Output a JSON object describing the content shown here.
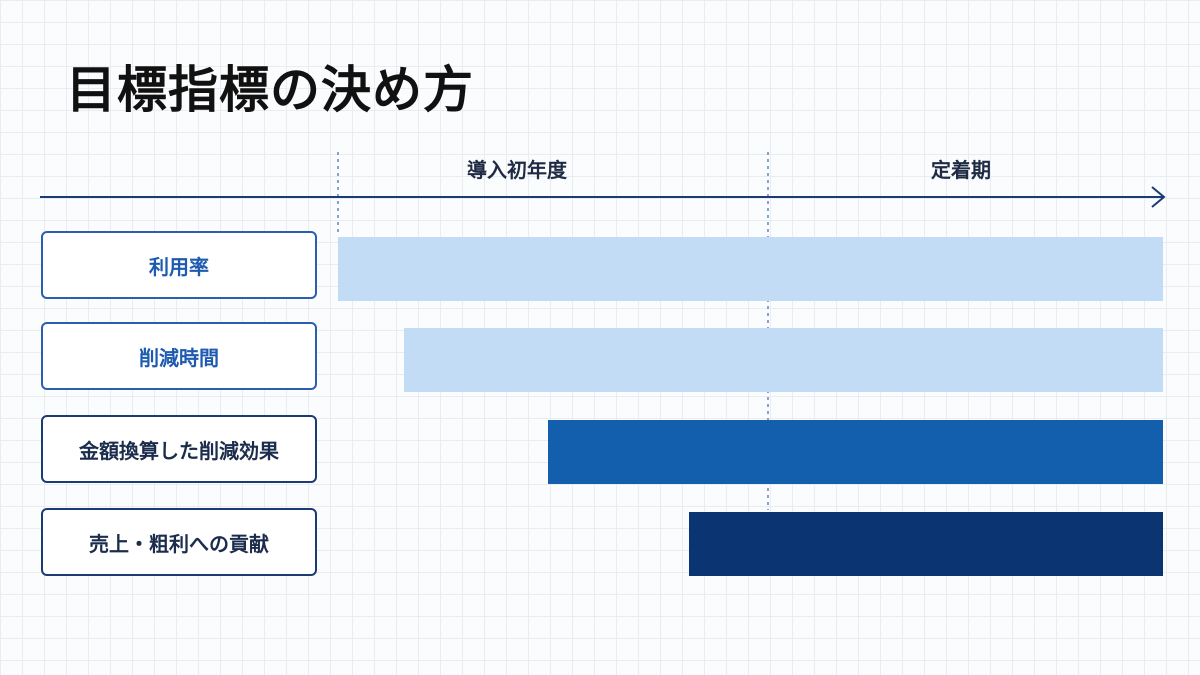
{
  "title": "目標指標の決め方",
  "phases": [
    {
      "label": "導入初年度"
    },
    {
      "label": "定着期"
    }
  ],
  "metrics": [
    {
      "label": "利用率",
      "color": "#c3dcf5"
    },
    {
      "label": "削減時間",
      "color": "#c3dcf5"
    },
    {
      "label": "金額換算した削減効果",
      "color": "#145eae"
    },
    {
      "label": "売上・粗利への貢献",
      "color": "#0b3472"
    }
  ],
  "colors": {
    "axis": "#1c3a73",
    "label_text_accent": "#1e5bb0",
    "label_text_dark": "#1b2c4d"
  }
}
